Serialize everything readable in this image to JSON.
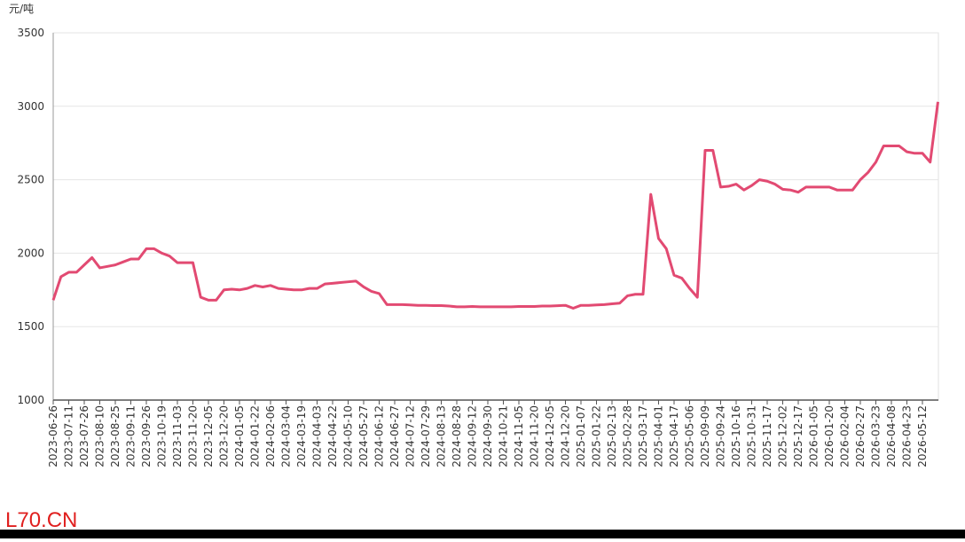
{
  "chart_data": {
    "type": "line",
    "y_label": "元/吨",
    "watermark": "L70.CN",
    "categories": [
      "2023-06-26",
      null,
      "2023-07-11",
      null,
      "2023-07-26",
      null,
      "2023-08-10",
      null,
      "2023-08-25",
      null,
      "2023-09-11",
      null,
      "2023-09-26",
      null,
      "2023-10-19",
      null,
      "2023-11-03",
      null,
      "2023-11-20",
      null,
      "2023-12-05",
      null,
      "2023-12-20",
      null,
      "2024-01-05",
      null,
      "2024-01-22",
      null,
      "2024-02-06",
      null,
      "2024-03-04",
      null,
      "2024-03-19",
      null,
      "2024-04-03",
      null,
      "2024-04-22",
      null,
      "2024-05-10",
      null,
      "2024-05-27",
      null,
      "2024-06-12",
      null,
      "2024-06-27",
      null,
      "2024-07-12",
      null,
      "2024-07-29",
      null,
      "2024-08-13",
      null,
      "2024-08-28",
      null,
      "2024-09-12",
      null,
      "2024-09-30",
      null,
      "2024-10-21",
      null,
      "2024-11-05",
      null,
      "2024-11-20",
      null,
      "2024-12-05",
      null,
      "2024-12-20",
      null,
      "2025-01-07",
      null,
      "2025-01-22",
      null,
      "2025-02-13",
      null,
      "2025-02-28",
      null,
      "2025-03-17",
      null,
      "2025-04-01",
      null,
      "2025-04-17",
      null,
      "2025-05-06",
      null,
      "2025-09-09",
      null,
      "2025-09-24",
      null,
      "2025-10-16",
      null,
      "2025-10-31",
      null,
      "2025-11-17",
      null,
      "2025-12-02",
      null,
      "2025-12-17",
      null,
      "2026-01-05",
      null,
      "2026-01-20",
      null,
      "2026-02-04",
      null,
      "2026-02-27",
      null,
      "2026-03-23",
      null,
      "2026-04-08",
      null,
      "2026-04-23",
      null,
      "2026-05-12",
      null,
      null
    ],
    "series": [
      {
        "color": "#e24a72",
        "values": [
          1680,
          1840,
          1870,
          1870,
          1920,
          1970,
          1900,
          1910,
          1920,
          1940,
          1960,
          1960,
          2030,
          2030,
          2000,
          1980,
          1935,
          1935,
          1935,
          1700,
          1680,
          1680,
          1750,
          1755,
          1750,
          1760,
          1780,
          1770,
          1780,
          1760,
          1755,
          1750,
          1750,
          1760,
          1760,
          1790,
          1795,
          1800,
          1805,
          1810,
          1770,
          1740,
          1725,
          1650,
          1650,
          1650,
          1648,
          1645,
          1645,
          1643,
          1643,
          1640,
          1635,
          1635,
          1637,
          1635,
          1635,
          1635,
          1635,
          1635,
          1637,
          1637,
          1637,
          1640,
          1640,
          1642,
          1645,
          1625,
          1645,
          1645,
          1648,
          1650,
          1655,
          1660,
          1710,
          1720,
          1720,
          2400,
          2100,
          2030,
          1850,
          1830,
          1760,
          1700,
          2700,
          2700,
          2450,
          2455,
          2470,
          2430,
          2460,
          2500,
          2490,
          2470,
          2435,
          2430,
          2415,
          2450,
          2450,
          2450,
          2450,
          2430,
          2430,
          2430,
          2500,
          2550,
          2620,
          2730,
          2730,
          2730,
          2690,
          2680,
          2680,
          2620,
          3030
        ]
      }
    ],
    "ylim": [
      1000,
      3500
    ],
    "yticks": [
      1000,
      1500,
      2000,
      2500,
      3000,
      3500
    ],
    "grid": true
  }
}
